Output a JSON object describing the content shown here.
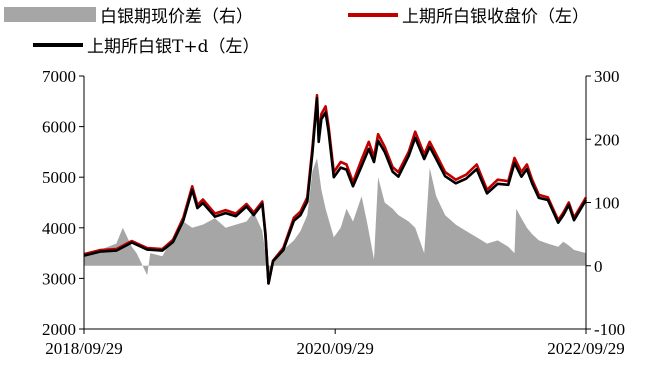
{
  "chart_data": {
    "type": "line",
    "legend": [
      {
        "label": "白银期现价差（右）",
        "kind": "area",
        "color": "#a6a6a6"
      },
      {
        "label": "上期所白银收盘价（左）",
        "kind": "line",
        "color": "#c00000"
      },
      {
        "label": "上期所白银T+d（左）",
        "kind": "line",
        "color": "#000000"
      }
    ],
    "x_labels": [
      "2018/09/29",
      "2020/09/29",
      "2022/09/29"
    ],
    "y_left": {
      "min": 2000,
      "max": 7000,
      "ticks": [
        "2000",
        "3000",
        "4000",
        "5000",
        "6000",
        "7000"
      ]
    },
    "y_right": {
      "min": -100,
      "max": 300,
      "ticks": [
        "-100",
        "0",
        "100",
        "200",
        "300"
      ]
    },
    "x_range": [
      "2018/09/29",
      "2022/09/29"
    ],
    "series": [
      {
        "name": "上期所白银收盘价（左）",
        "axis": "left",
        "color": "#c00000",
        "points": [
          [
            "2018/09/29",
            3480
          ],
          [
            "2018/11/15",
            3560
          ],
          [
            "2019/01/01",
            3580
          ],
          [
            "2019/02/15",
            3740
          ],
          [
            "2019/04/01",
            3600
          ],
          [
            "2019/05/15",
            3580
          ],
          [
            "2019/06/15",
            3760
          ],
          [
            "2019/07/15",
            4200
          ],
          [
            "2019/08/10",
            4820
          ],
          [
            "2019/08/25",
            4450
          ],
          [
            "2019/09/10",
            4560
          ],
          [
            "2019/10/15",
            4280
          ],
          [
            "2019/11/15",
            4350
          ],
          [
            "2019/12/15",
            4280
          ],
          [
            "2020/01/15",
            4470
          ],
          [
            "2020/02/05",
            4300
          ],
          [
            "2020/03/01",
            4520
          ],
          [
            "2020/03/10",
            3900
          ],
          [
            "2020/03/19",
            2900
          ],
          [
            "2020/04/01",
            3350
          ],
          [
            "2020/05/01",
            3600
          ],
          [
            "2020/06/01",
            4200
          ],
          [
            "2020/06/20",
            4320
          ],
          [
            "2020/07/10",
            4600
          ],
          [
            "2020/07/25",
            5600
          ],
          [
            "2020/08/07",
            6620
          ],
          [
            "2020/08/12",
            5800
          ],
          [
            "2020/08/20",
            6250
          ],
          [
            "2020/09/01",
            6400
          ],
          [
            "2020/09/10",
            6000
          ],
          [
            "2020/09/25",
            5100
          ],
          [
            "2020/10/15",
            5300
          ],
          [
            "2020/11/01",
            5250
          ],
          [
            "2020/11/20",
            4900
          ],
          [
            "2020/12/15",
            5350
          ],
          [
            "2021/01/05",
            5700
          ],
          [
            "2021/01/20",
            5400
          ],
          [
            "2021/02/01",
            5850
          ],
          [
            "2021/02/20",
            5600
          ],
          [
            "2021/03/15",
            5200
          ],
          [
            "2021/04/01",
            5100
          ],
          [
            "2021/05/01",
            5500
          ],
          [
            "2021/05/20",
            5900
          ],
          [
            "2021/06/15",
            5450
          ],
          [
            "2021/07/01",
            5700
          ],
          [
            "2021/07/20",
            5450
          ],
          [
            "2021/08/15",
            5100
          ],
          [
            "2021/09/15",
            4950
          ],
          [
            "2021/10/15",
            5050
          ],
          [
            "2021/11/15",
            5250
          ],
          [
            "2021/12/15",
            4750
          ],
          [
            "2022/01/15",
            4950
          ],
          [
            "2022/02/15",
            4920
          ],
          [
            "2022/03/05",
            5380
          ],
          [
            "2022/03/25",
            5100
          ],
          [
            "2022/04/10",
            5250
          ],
          [
            "2022/04/25",
            4950
          ],
          [
            "2022/05/15",
            4650
          ],
          [
            "2022/06/10",
            4600
          ],
          [
            "2022/07/10",
            4150
          ],
          [
            "2022/07/25",
            4300
          ],
          [
            "2022/08/10",
            4500
          ],
          [
            "2022/08/25",
            4200
          ],
          [
            "2022/09/29",
            4600
          ]
        ]
      },
      {
        "name": "上期所白银T+d（左）",
        "axis": "left",
        "color": "#000000",
        "points": [
          [
            "2018/09/29",
            3450
          ],
          [
            "2018/11/15",
            3530
          ],
          [
            "2019/01/01",
            3550
          ],
          [
            "2019/02/15",
            3710
          ],
          [
            "2019/04/01",
            3570
          ],
          [
            "2019/05/15",
            3550
          ],
          [
            "2019/06/15",
            3720
          ],
          [
            "2019/07/15",
            4140
          ],
          [
            "2019/08/10",
            4750
          ],
          [
            "2019/08/25",
            4390
          ],
          [
            "2019/09/10",
            4490
          ],
          [
            "2019/10/15",
            4220
          ],
          [
            "2019/11/15",
            4290
          ],
          [
            "2019/12/15",
            4230
          ],
          [
            "2020/01/15",
            4420
          ],
          [
            "2020/02/05",
            4250
          ],
          [
            "2020/03/01",
            4470
          ],
          [
            "2020/03/10",
            3870
          ],
          [
            "2020/03/19",
            2900
          ],
          [
            "2020/04/01",
            3340
          ],
          [
            "2020/05/01",
            3560
          ],
          [
            "2020/06/01",
            4140
          ],
          [
            "2020/06/20",
            4250
          ],
          [
            "2020/07/10",
            4520
          ],
          [
            "2020/07/25",
            5500
          ],
          [
            "2020/08/07",
            6560
          ],
          [
            "2020/08/12",
            5700
          ],
          [
            "2020/08/20",
            6150
          ],
          [
            "2020/09/01",
            6280
          ],
          [
            "2020/09/10",
            5900
          ],
          [
            "2020/09/25",
            5000
          ],
          [
            "2020/10/15",
            5190
          ],
          [
            "2020/11/01",
            5150
          ],
          [
            "2020/11/20",
            4820
          ],
          [
            "2020/12/15",
            5220
          ],
          [
            "2021/01/05",
            5560
          ],
          [
            "2021/01/20",
            5300
          ],
          [
            "2021/02/01",
            5720
          ],
          [
            "2021/02/20",
            5500
          ],
          [
            "2021/03/15",
            5110
          ],
          [
            "2021/04/01",
            5010
          ],
          [
            "2021/05/01",
            5420
          ],
          [
            "2021/05/20",
            5780
          ],
          [
            "2021/06/15",
            5360
          ],
          [
            "2021/07/01",
            5600
          ],
          [
            "2021/07/20",
            5360
          ],
          [
            "2021/08/15",
            5020
          ],
          [
            "2021/09/15",
            4880
          ],
          [
            "2021/10/15",
            4970
          ],
          [
            "2021/11/15",
            5160
          ],
          [
            "2021/12/15",
            4680
          ],
          [
            "2022/01/15",
            4870
          ],
          [
            "2022/02/15",
            4850
          ],
          [
            "2022/03/05",
            5280
          ],
          [
            "2022/03/25",
            5010
          ],
          [
            "2022/04/10",
            5160
          ],
          [
            "2022/04/25",
            4880
          ],
          [
            "2022/05/15",
            4590
          ],
          [
            "2022/06/10",
            4550
          ],
          [
            "2022/07/10",
            4100
          ],
          [
            "2022/07/25",
            4250
          ],
          [
            "2022/08/10",
            4450
          ],
          [
            "2022/08/25",
            4150
          ],
          [
            "2022/09/29",
            4550
          ]
        ]
      },
      {
        "name": "白银期现价差（右）",
        "axis": "right",
        "color": "#a6a6a6",
        "type": "area",
        "points": [
          [
            "2018/09/29",
            15
          ],
          [
            "2018/11/15",
            25
          ],
          [
            "2019/01/01",
            35
          ],
          [
            "2019/01/20",
            60
          ],
          [
            "2019/02/15",
            30
          ],
          [
            "2019/03/01",
            20
          ],
          [
            "2019/04/01",
            -15
          ],
          [
            "2019/04/10",
            20
          ],
          [
            "2019/05/15",
            15
          ],
          [
            "2019/06/15",
            45
          ],
          [
            "2019/07/15",
            70
          ],
          [
            "2019/08/10",
            60
          ],
          [
            "2019/09/10",
            65
          ],
          [
            "2019/10/15",
            75
          ],
          [
            "2019/11/15",
            60
          ],
          [
            "2019/12/15",
            65
          ],
          [
            "2020/01/15",
            70
          ],
          [
            "2020/02/05",
            85
          ],
          [
            "2020/03/01",
            55
          ],
          [
            "2020/03/19",
            -15
          ],
          [
            "2020/04/01",
            10
          ],
          [
            "2020/05/01",
            25
          ],
          [
            "2020/06/01",
            40
          ],
          [
            "2020/06/20",
            55
          ],
          [
            "2020/07/10",
            80
          ],
          [
            "2020/07/25",
            150
          ],
          [
            "2020/08/07",
            170
          ],
          [
            "2020/08/20",
            120
          ],
          [
            "2020/09/01",
            90
          ],
          [
            "2020/09/25",
            45
          ],
          [
            "2020/10/15",
            60
          ],
          [
            "2020/11/01",
            90
          ],
          [
            "2020/11/20",
            70
          ],
          [
            "2020/12/15",
            110
          ],
          [
            "2021/01/01",
            65
          ],
          [
            "2021/01/20",
            10
          ],
          [
            "2021/02/01",
            140
          ],
          [
            "2021/02/20",
            100
          ],
          [
            "2021/03/15",
            90
          ],
          [
            "2021/04/01",
            80
          ],
          [
            "2021/05/01",
            70
          ],
          [
            "2021/05/20",
            60
          ],
          [
            "2021/06/15",
            20
          ],
          [
            "2021/07/01",
            155
          ],
          [
            "2021/07/20",
            110
          ],
          [
            "2021/08/15",
            80
          ],
          [
            "2021/09/15",
            65
          ],
          [
            "2021/10/15",
            55
          ],
          [
            "2021/11/15",
            45
          ],
          [
            "2021/12/15",
            35
          ],
          [
            "2022/01/15",
            40
          ],
          [
            "2022/02/15",
            30
          ],
          [
            "2022/03/05",
            20
          ],
          [
            "2022/03/10",
            90
          ],
          [
            "2022/03/25",
            75
          ],
          [
            "2022/04/10",
            60
          ],
          [
            "2022/04/25",
            50
          ],
          [
            "2022/05/15",
            40
          ],
          [
            "2022/06/10",
            35
          ],
          [
            "2022/07/10",
            30
          ],
          [
            "2022/07/25",
            38
          ],
          [
            "2022/08/10",
            32
          ],
          [
            "2022/08/25",
            25
          ],
          [
            "2022/09/29",
            20
          ]
        ]
      }
    ]
  }
}
